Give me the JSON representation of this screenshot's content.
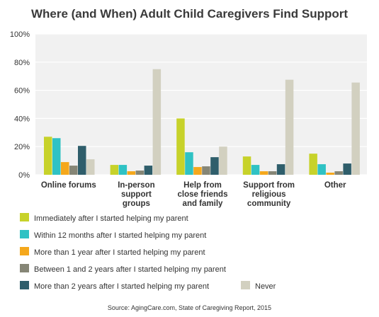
{
  "chart_data": {
    "type": "bar",
    "title": "Where (and When) Adult Child Caregivers Find Support",
    "xlabel": "",
    "ylabel": "",
    "ylim": [
      0,
      100
    ],
    "yticks": [
      "0%",
      "20%",
      "40%",
      "60%",
      "80%",
      "100%"
    ],
    "grid": true,
    "legend": "bottom",
    "categories": [
      [
        "Online forums"
      ],
      [
        "In-person",
        "support",
        "groups"
      ],
      [
        "Help from",
        "close friends",
        "and family"
      ],
      [
        "Support from",
        "religious",
        "community"
      ],
      [
        "Other"
      ]
    ],
    "series": [
      {
        "name": "Immediately after I started helping my parent",
        "color": "#c7d22a",
        "values": [
          27,
          7,
          40,
          13,
          15
        ]
      },
      {
        "name": "Within 12 months after I started helping my parent",
        "color": "#2fc2c4",
        "values": [
          26,
          7,
          16,
          7,
          7.5
        ]
      },
      {
        "name": "More than 1 year after I started helping my parent",
        "color": "#f5a81c",
        "values": [
          9,
          2.5,
          5.5,
          2.5,
          1.5
        ]
      },
      {
        "name": "Between 1 and 2 years after I started helping my parent",
        "color": "#868676",
        "values": [
          6.5,
          3,
          6,
          2.5,
          2.5
        ]
      },
      {
        "name": "More than 2 years after I started helping my parent",
        "color": "#2f5e6b",
        "values": [
          20.5,
          6.5,
          12.5,
          7.5,
          8
        ]
      },
      {
        "name": "Never",
        "color": "#d2d0c0",
        "values": [
          11,
          75,
          20,
          67.5,
          65.5
        ]
      }
    ],
    "source": "Source: AgingCare.com, State of Caregiving Report, 2015"
  }
}
